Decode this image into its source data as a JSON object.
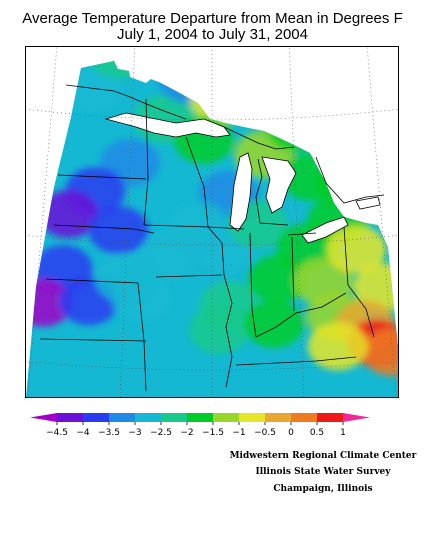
{
  "title": {
    "line1": "Average Temperature Departure from Mean in Degrees F",
    "line2": "July 1, 2004 to July 31, 2004"
  },
  "legend": {
    "tick_labels": [
      "-4.5",
      "-4",
      "-3.5",
      "-3",
      "-2.5",
      "-2",
      "-1.5",
      "-1",
      "-0.5",
      "0",
      "0.5",
      "1"
    ],
    "colors": [
      "#a000c8",
      "#6a10d8",
      "#2a3cf0",
      "#1e8ae6",
      "#14b8d2",
      "#18c98c",
      "#00cc28",
      "#9ad62a",
      "#e6e628",
      "#e6a830",
      "#ee7a22",
      "#ee1a1a",
      "#ee2a9a"
    ]
  },
  "credits": {
    "line1": "Midwestern Regional Climate Center",
    "line2": "Illinois State Water Survey",
    "line3": "Champaign, Illinois"
  },
  "map": {
    "region": "Midwest United States",
    "field": "temperature departure from mean (°F)",
    "blobs": [
      {
        "lon": -97.5,
        "lat": 46.0,
        "value": -3.0
      },
      {
        "lon": -96.0,
        "lat": 47.5,
        "value": -2.5
      },
      {
        "lon": -94.5,
        "lat": 48.5,
        "value": -3.5
      },
      {
        "lon": -95.2,
        "lat": 49.0,
        "value": -4.0
      },
      {
        "lon": -93.0,
        "lat": 45.0,
        "value": -2.5
      },
      {
        "lon": -91.5,
        "lat": 46.6,
        "value": -3.3
      },
      {
        "lon": -89.5,
        "lat": 45.8,
        "value": -1.0
      },
      {
        "lon": -90.5,
        "lat": 44.2,
        "value": -2.0
      },
      {
        "lon": -86.8,
        "lat": 43.6,
        "value": -1.2
      },
      {
        "lon": -84.8,
        "lat": 44.6,
        "value": -1.8
      },
      {
        "lon": -84.0,
        "lat": 42.6,
        "value": -2.0
      },
      {
        "lon": -82.0,
        "lat": 42.2,
        "value": -1.6
      },
      {
        "lon": -89.0,
        "lat": 42.0,
        "value": -3.2
      },
      {
        "lon": -95.0,
        "lat": 43.2,
        "value": -3.2
      },
      {
        "lon": -97.0,
        "lat": 42.0,
        "value": -3.8
      },
      {
        "lon": -98.5,
        "lat": 41.0,
        "value": -4.2
      },
      {
        "lon": -95.5,
        "lat": 40.5,
        "value": -3.6
      },
      {
        "lon": -98.6,
        "lat": 38.8,
        "value": -3.8
      },
      {
        "lon": -99.6,
        "lat": 37.4,
        "value": -4.6
      },
      {
        "lon": -97.0,
        "lat": 37.6,
        "value": -3.6
      },
      {
        "lon": -95.0,
        "lat": 38.6,
        "value": -3.0
      },
      {
        "lon": -94.0,
        "lat": 37.8,
        "value": -2.7
      },
      {
        "lon": -92.5,
        "lat": 39.5,
        "value": -2.8
      },
      {
        "lon": -90.8,
        "lat": 40.8,
        "value": -2.8
      },
      {
        "lon": -89.4,
        "lat": 39.8,
        "value": -2.8
      },
      {
        "lon": -89.0,
        "lat": 37.6,
        "value": -2.2
      },
      {
        "lon": -89.6,
        "lat": 36.6,
        "value": -2.3
      },
      {
        "lon": -87.3,
        "lat": 40.8,
        "value": -2.2
      },
      {
        "lon": -86.2,
        "lat": 38.6,
        "value": -2.0
      },
      {
        "lon": -86.5,
        "lat": 36.8,
        "value": -1.8
      },
      {
        "lon": -84.5,
        "lat": 39.8,
        "value": -1.6
      },
      {
        "lon": -83.6,
        "lat": 38.4,
        "value": -1.2
      },
      {
        "lon": -83.0,
        "lat": 37.0,
        "value": -1.2
      },
      {
        "lon": -82.6,
        "lat": 40.8,
        "value": -1.6
      },
      {
        "lon": -81.6,
        "lat": 39.6,
        "value": -1.0
      },
      {
        "lon": -80.8,
        "lat": 41.6,
        "value": -1.8
      },
      {
        "lon": -80.2,
        "lat": 38.0,
        "value": -0.6
      },
      {
        "lon": -81.4,
        "lat": 36.6,
        "value": -0.2
      },
      {
        "lon": -80.8,
        "lat": 35.8,
        "value": 0.6
      },
      {
        "lon": -80.0,
        "lat": 35.4,
        "value": 0.2
      },
      {
        "lon": -83.0,
        "lat": 35.8,
        "value": -1.0
      }
    ]
  }
}
